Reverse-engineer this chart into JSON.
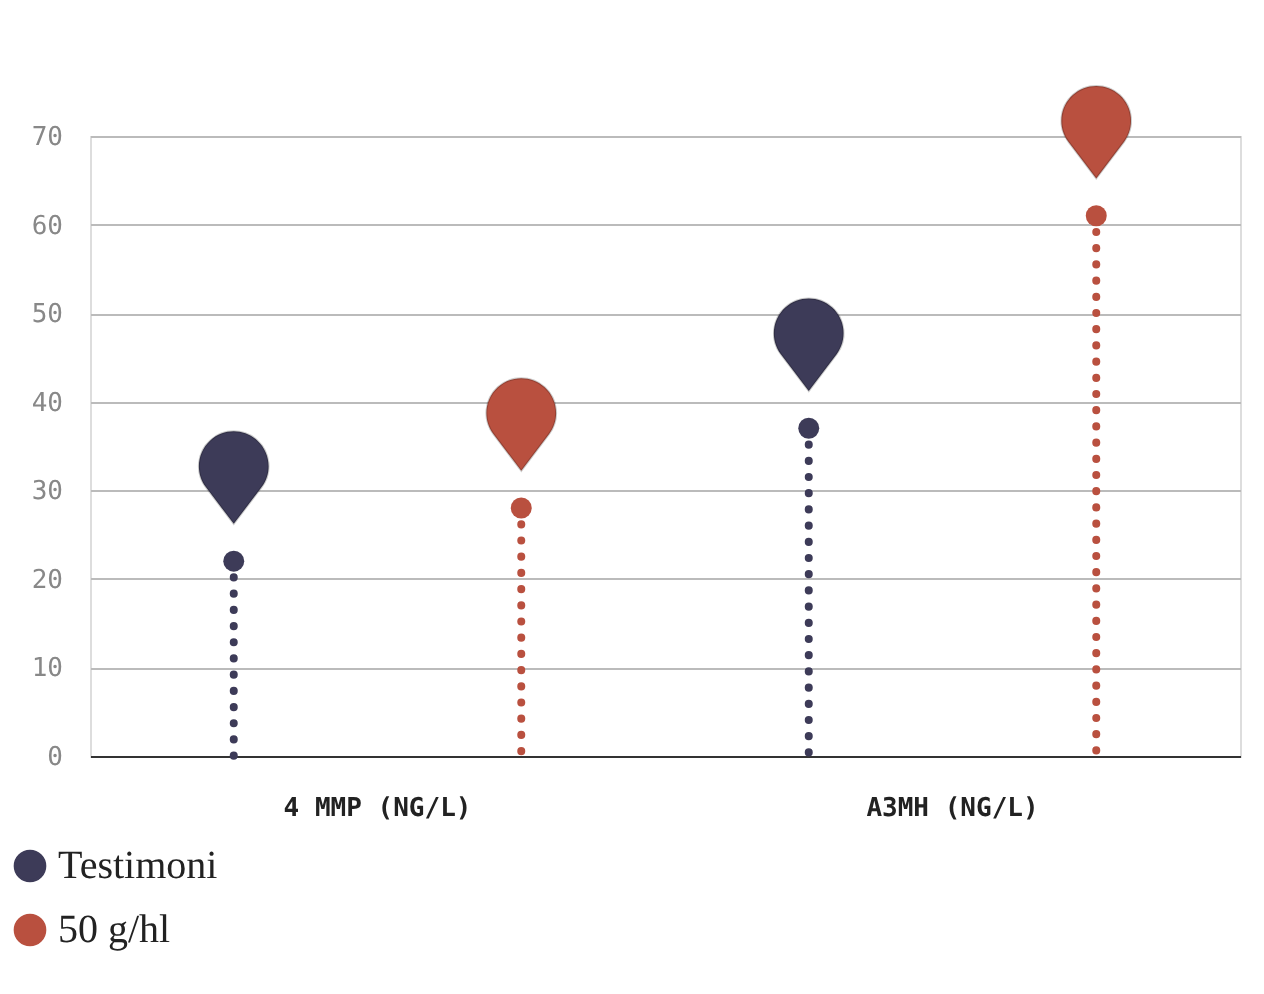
{
  "chart_data": {
    "type": "lollipop",
    "categories": [
      null,
      null,
      null,
      null
    ],
    "series": [
      {
        "name": "Testimoni",
        "color": "#3d3b58",
        "values": [
          22,
          null,
          37,
          null
        ]
      },
      {
        "name": "50 g/hl",
        "color": "#b9503f",
        "values": [
          null,
          28,
          null,
          61
        ]
      }
    ],
    "annotations": [
      "4 MMP (NG/L)",
      "A3MH (NG/L)"
    ],
    "ylim": [
      0,
      70
    ],
    "yticks": [
      0,
      10,
      20,
      30,
      40,
      50,
      60,
      70
    ],
    "grid": "y",
    "marker": "circle",
    "tick_labels": "y",
    "legend": "bottom left"
  }
}
